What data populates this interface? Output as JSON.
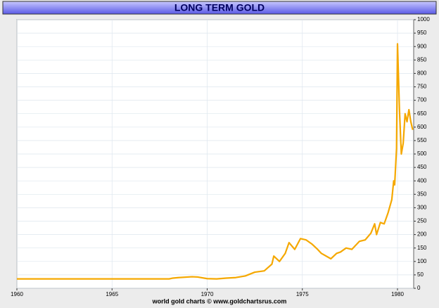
{
  "chart_data": {
    "type": "line",
    "title": "LONG TERM GOLD",
    "source": "world gold charts © www.goldchartsrus.com",
    "x": [
      1960,
      1961,
      1962,
      1963,
      1964,
      1965,
      1966,
      1967,
      1968,
      1968.2,
      1968.5,
      1969.2,
      1969.5,
      1970,
      1970.5,
      1971,
      1971.5,
      1972,
      1972.5,
      1973,
      1973.4,
      1973.5,
      1973.8,
      1974.1,
      1974.3,
      1974.6,
      1974.9,
      1975.2,
      1975.5,
      1975.8,
      1976,
      1976.5,
      1976.8,
      1977,
      1977.3,
      1977.6,
      1978,
      1978.3,
      1978.6,
      1978.8,
      1978.9,
      1979.1,
      1979.3,
      1979.5,
      1979.7,
      1979.8,
      1979.85,
      1979.95,
      1980,
      1980.1,
      1980.2,
      1980.3,
      1980.4,
      1980.5,
      1980.6,
      1980.7,
      1980.8
    ],
    "series": [
      {
        "name": "Gold",
        "color": "#f5a800",
        "values": [
          35,
          35,
          35,
          35,
          35,
          35,
          35,
          35,
          35,
          38,
          40,
          43,
          42,
          36,
          35,
          38,
          40,
          46,
          60,
          65,
          90,
          120,
          100,
          130,
          170,
          145,
          185,
          180,
          165,
          145,
          130,
          110,
          130,
          135,
          150,
          145,
          175,
          180,
          205,
          240,
          200,
          245,
          240,
          280,
          330,
          400,
          385,
          520,
          910,
          670,
          500,
          540,
          650,
          620,
          665,
          620,
          590
        ]
      }
    ],
    "xlim": [
      1960,
      1980.85
    ],
    "xticks": [
      1960,
      1965,
      1970,
      1975,
      1980
    ],
    "ylim": [
      0,
      1000
    ],
    "yticks": [
      0,
      50,
      100,
      150,
      200,
      250,
      300,
      350,
      400,
      450,
      500,
      550,
      600,
      650,
      700,
      750,
      800,
      850,
      900,
      950,
      1000
    ],
    "grid": true
  }
}
